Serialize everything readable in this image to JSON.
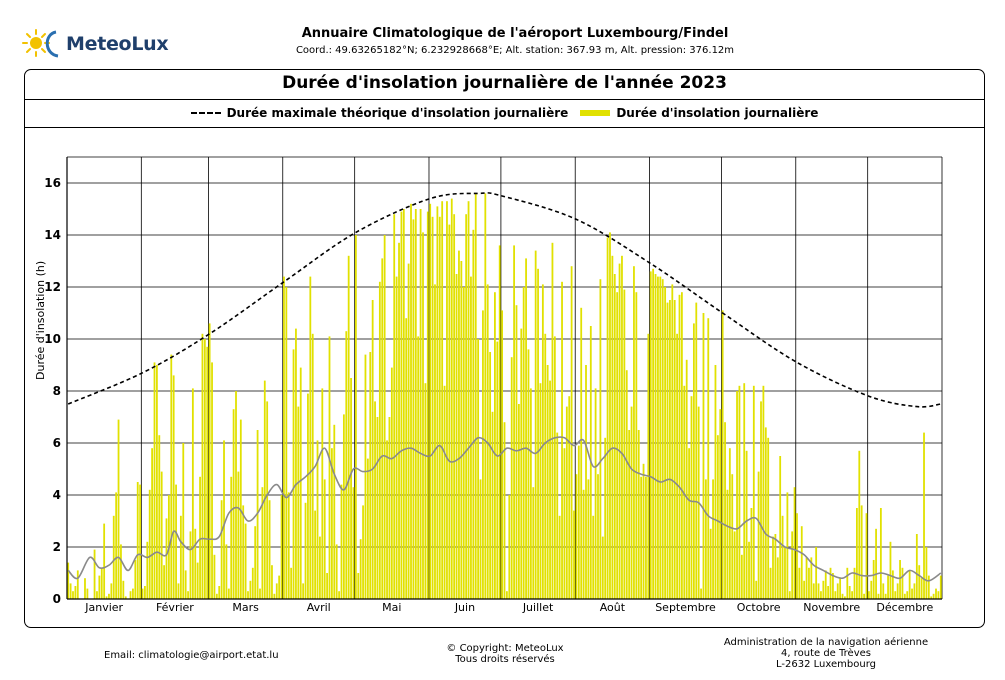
{
  "header": {
    "logo_text": "MeteoLux",
    "title": "Annuaire Climatologique de l'aéroport Luxembourg/Findel",
    "coords": "Coord.: 49.63265182°N; 6.232928668°E; Alt. station: 367.93 m, Alt. pression: 376.12m"
  },
  "footer": {
    "email": "Email: climatologie@airport.etat.lu",
    "copyright_1": "© Copyright: MeteoLux",
    "copyright_2": "Tous droits réservés",
    "admin_1": "Administration de la navigation aérienne",
    "admin_2": "4, route de Trèves",
    "admin_3": "L-2632 Luxembourg"
  },
  "colors": {
    "bar": "#e1e100",
    "mean_line": "#8a8a8a",
    "max_line": "#000000"
  },
  "chart_data": {
    "type": "bar",
    "title": "Durée d'insolation journalière de l'année 2023",
    "ylabel": "Durée d'insolation (h)",
    "xlabel": "",
    "ylim": [
      0,
      17
    ],
    "yticks": [
      0,
      2,
      4,
      6,
      8,
      10,
      12,
      14,
      16
    ],
    "grid": true,
    "legend_position": "top",
    "months": [
      "Janvier",
      "Février",
      "Mars",
      "Avril",
      "Mai",
      "Juin",
      "Juillet",
      "Août",
      "Septembre",
      "Octobre",
      "Novembre",
      "Décembre"
    ],
    "series": [
      {
        "name": "Durée maximale théorique d'insolation journalière",
        "style": "dashed-line",
        "x": [
          1,
          32,
          60,
          91,
          121,
          152,
          172,
          182,
          213,
          244,
          274,
          305,
          335,
          355,
          365
        ],
        "values": [
          7.5,
          8.7,
          10.2,
          12.2,
          14.1,
          15.4,
          15.6,
          15.5,
          14.6,
          12.9,
          11.0,
          9.1,
          7.8,
          7.4,
          7.5
        ]
      },
      {
        "name": "Durée d'insolation journalière",
        "style": "bar",
        "monthly_values": [
          [
            1.4,
            0.6,
            0.3,
            0.5,
            1.1,
            0,
            0,
            0.8,
            0.4,
            0,
            0,
            1.9,
            0.3,
            0.9,
            1.2,
            2.9,
            0.1,
            0.2,
            0.6,
            3.2,
            4.1,
            6.9,
            2.1,
            0.7,
            0.1,
            0,
            0.3,
            0.4,
            1.5,
            4.5,
            4.4
          ],
          [
            0.4,
            0.5,
            2.2,
            4.2,
            5.8,
            9.1,
            9.0,
            6.3,
            4.9,
            1.3,
            3.1,
            4.0,
            9.4,
            8.6,
            4.4,
            0.6,
            3.2,
            6.0,
            1.1,
            0.3,
            2.6,
            8.1,
            2.7,
            1.4,
            4.7,
            10.2,
            10.0,
            9.7
          ],
          [
            10.6,
            9.1,
            1.7,
            0.2,
            0.5,
            3.8,
            6.1,
            2.1,
            0.4,
            4.7,
            7.3,
            8.0,
            4.9,
            6.9,
            3.6,
            2.9,
            0.3,
            0.7,
            1.2,
            2.8,
            6.5,
            0.4,
            4.3,
            8.4,
            7.6,
            3.8,
            1.3,
            0.2,
            0.6,
            0.9,
            4.0
          ],
          [
            12.4,
            12.0,
            4.1,
            1.2,
            9.6,
            10.4,
            7.4,
            8.9,
            0.6,
            3.7,
            7.9,
            12.4,
            10.2,
            3.4,
            6.1,
            2.4,
            8.1,
            4.6,
            1.0,
            10.1,
            5.8,
            6.7,
            2.1,
            0.3,
            4.4,
            7.1,
            10.3,
            13.2,
            8.5,
            4.3
          ],
          [
            14.0,
            1.0,
            2.3,
            3.6,
            9.4,
            5.4,
            9.5,
            11.5,
            7.6,
            7.0,
            12.2,
            13.1,
            14.0,
            6.1,
            7.0,
            8.9,
            14.8,
            12.4,
            13.7,
            14.9,
            15.0,
            10.8,
            12.9,
            15.2,
            14.6,
            15.0,
            10.1,
            15.0,
            14.1,
            8.3,
            14.9
          ],
          [
            15.2,
            14.7,
            12.1,
            15.1,
            14.7,
            15.3,
            8.2,
            15.3,
            14.4,
            15.4,
            14.8,
            12.5,
            13.4,
            13.0,
            12.0,
            14.8,
            15.3,
            12.4,
            14.2,
            15.6,
            10.0,
            4.6,
            11.1,
            15.6,
            12.1,
            9.5,
            7.2,
            11.8,
            9.9,
            13.6
          ],
          [
            11.1,
            6.8,
            0.3,
            4.0,
            9.3,
            13.6,
            11.3,
            7.5,
            10.4,
            12.0,
            13.1,
            9.6,
            8.1,
            4.3,
            13.4,
            12.7,
            8.3,
            12.1,
            10.2,
            9.0,
            8.4,
            13.7,
            10.1,
            6.4,
            3.2,
            12.2,
            5.8,
            7.4,
            7.8,
            12.8,
            3.4
          ],
          [
            4.8,
            5.9,
            11.2,
            4.2,
            9.0,
            4.6,
            10.5,
            3.2,
            8.1,
            4.8,
            12.3,
            2.4,
            6.2,
            13.9,
            14.1,
            13.2,
            12.5,
            11.8,
            12.9,
            13.2,
            11.9,
            8.8,
            6.5,
            7.4,
            12.8,
            11.8,
            6.5,
            4.7,
            5.2,
            4.7,
            10.2
          ],
          [
            12.6,
            12.7,
            12.5,
            12.4,
            12.4,
            12.3,
            12.0,
            11.4,
            11.5,
            12.1,
            11.5,
            10.2,
            11.7,
            11.8,
            8.2,
            9.2,
            5.8,
            7.8,
            10.6,
            11.4,
            7.4,
            0.4,
            11.0,
            4.6,
            10.8,
            2.7,
            4.6,
            9.0,
            6.3,
            7.3
          ],
          [
            11.1,
            6.8,
            4.2,
            5.8,
            4.8,
            2.6,
            8.0,
            8.2,
            1.7,
            8.3,
            5.7,
            2.2,
            3.5,
            8.2,
            0.7,
            4.9,
            7.6,
            8.2,
            6.6,
            6.2,
            1.2,
            2.4,
            2.5,
            1.6,
            5.5,
            3.2,
            2.0,
            4.1,
            0.3,
            2.6,
            4.3
          ],
          [
            3.3,
            1.2,
            2.8,
            0.7,
            1.6,
            1.2,
            1.6,
            0.6,
            2.0,
            0.6,
            0.3,
            0.7,
            1.1,
            0.5,
            1.2,
            1.0,
            0.3,
            0.6,
            0.8,
            0.2,
            0.1,
            1.2,
            0.5,
            0.3,
            1.2,
            3.5,
            5.7,
            3.6,
            0.2,
            3.3
          ],
          [
            0.3,
            0.7,
            1.5,
            2.7,
            0.2,
            3.5,
            0.6,
            0.2,
            0.9,
            2.2,
            1.1,
            0.3,
            0.6,
            1.5,
            1.2,
            0.2,
            0.3,
            1.1,
            0.4,
            0.6,
            2.5,
            1.3,
            0.8,
            6.4,
            2.0,
            0.9,
            0.1,
            0.2,
            0.4,
            0.3,
            0.9
          ]
        ]
      },
      {
        "name": "",
        "style": "solid-line",
        "x": [
          1,
          5,
          10,
          14,
          18,
          22,
          26,
          30,
          34,
          38,
          42,
          45,
          48,
          52,
          56,
          60,
          64,
          68,
          72,
          76,
          80,
          84,
          88,
          92,
          96,
          100,
          104,
          108,
          112,
          116,
          120,
          124,
          128,
          132,
          136,
          140,
          144,
          148,
          152,
          156,
          160,
          164,
          168,
          172,
          176,
          180,
          184,
          188,
          192,
          196,
          200,
          204,
          208,
          212,
          216,
          220,
          224,
          228,
          232,
          236,
          240,
          244,
          248,
          252,
          256,
          260,
          264,
          268,
          272,
          276,
          280,
          284,
          288,
          292,
          296,
          300,
          304,
          308,
          312,
          316,
          320,
          324,
          328,
          332,
          336,
          340,
          344,
          348,
          352,
          356,
          360,
          365
        ],
        "values": [
          1.1,
          0.8,
          1.6,
          1.2,
          1.3,
          1.6,
          1.1,
          1.7,
          1.6,
          1.8,
          1.7,
          2.6,
          2.2,
          1.9,
          2.3,
          2.3,
          2.4,
          3.3,
          3.5,
          3.0,
          3.3,
          4.0,
          4.4,
          3.9,
          4.4,
          4.7,
          5.1,
          5.8,
          4.8,
          4.2,
          5.0,
          4.9,
          5.0,
          5.5,
          5.4,
          5.7,
          5.8,
          5.6,
          5.5,
          5.9,
          5.3,
          5.4,
          5.8,
          6.2,
          6.0,
          5.5,
          5.8,
          5.7,
          5.8,
          5.6,
          6.0,
          6.2,
          6.2,
          5.9,
          6.1,
          5.1,
          5.4,
          5.8,
          5.6,
          5.0,
          4.8,
          4.7,
          4.5,
          4.6,
          4.3,
          3.8,
          3.7,
          3.2,
          3.0,
          2.8,
          2.7,
          3.0,
          3.1,
          2.5,
          2.3,
          2.0,
          1.9,
          1.7,
          1.3,
          1.1,
          0.9,
          0.8,
          1.0,
          0.9,
          0.9,
          1.0,
          0.9,
          0.8,
          1.1,
          0.9,
          0.7,
          1.0
        ]
      }
    ]
  }
}
